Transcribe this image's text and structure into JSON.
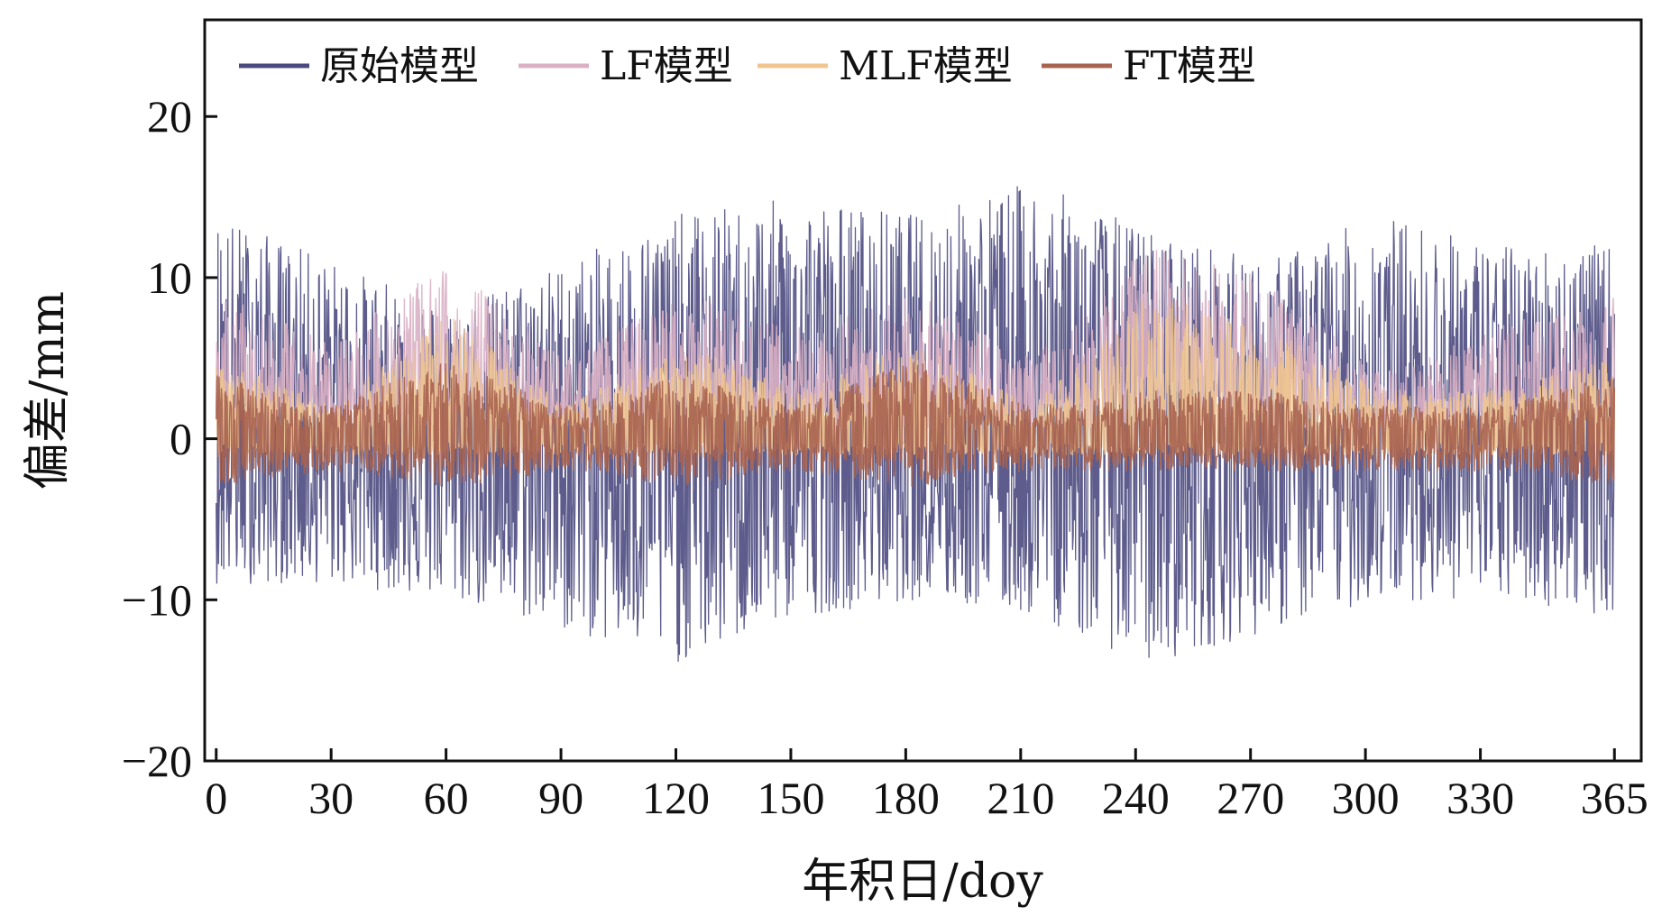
{
  "chart_data": {
    "type": "line",
    "title": "",
    "xlabel": "年积日/doy",
    "ylabel": "偏差/mm",
    "xlim": [
      -3,
      372
    ],
    "ylim": [
      -20,
      26
    ],
    "x_ticks": [
      0,
      30,
      60,
      90,
      120,
      150,
      180,
      210,
      240,
      270,
      300,
      330,
      365
    ],
    "y_ticks": [
      -20,
      -10,
      0,
      10,
      20
    ],
    "x_tick_labels": [
      "0",
      "30",
      "60",
      "90",
      "120",
      "150",
      "180",
      "210",
      "240",
      "270",
      "300",
      "330",
      "365"
    ],
    "y_tick_labels": [
      "−20",
      "−10",
      "0",
      "10",
      "20"
    ],
    "grid": false,
    "legend_position": "top-left",
    "series": [
      {
        "name": "原始模型",
        "color": "#4b4a7f",
        "envelope": {
          "upper": [
            14,
            11,
            8,
            11,
            14,
            15,
            14,
            16,
            13,
            11,
            14,
            12,
            12
          ],
          "lower": [
            -9,
            -9,
            -10,
            -12,
            -14,
            -11,
            -10,
            -11,
            -14,
            -12,
            -10,
            -10,
            -11
          ]
        }
      },
      {
        "name": "LF模型",
        "color": "#d9b0c4",
        "envelope": {
          "upper": [
            9,
            6,
            11,
            5,
            9,
            7,
            9,
            5,
            12,
            10,
            4,
            7,
            9
          ],
          "lower": [
            3,
            2,
            3,
            2,
            3,
            2,
            3,
            2,
            4,
            3,
            1,
            2,
            3
          ]
        }
      },
      {
        "name": "MLF模型",
        "color": "#f0c590",
        "envelope": {
          "upper": [
            5,
            2,
            8,
            2,
            6,
            3,
            6,
            2,
            9,
            7,
            3,
            3,
            5
          ],
          "lower": [
            -1,
            -1,
            -1,
            -1,
            -1,
            -1,
            -1,
            -1,
            -1,
            -1,
            -1,
            -1,
            -1
          ]
        }
      },
      {
        "name": "FT模型",
        "color": "#a8634f",
        "envelope": {
          "upper": [
            4,
            2,
            5,
            2,
            4,
            2,
            5,
            2,
            3,
            3,
            2,
            2,
            4
          ],
          "lower": [
            -3,
            -2,
            -3,
            -2,
            -3,
            -2,
            -3,
            -2,
            -2,
            -2,
            -2,
            -2,
            -3
          ]
        }
      }
    ]
  }
}
